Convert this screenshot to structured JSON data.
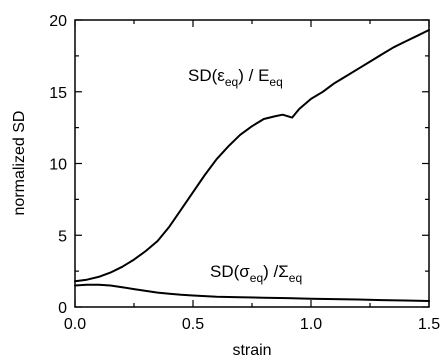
{
  "chart_data": {
    "type": "line",
    "title": "",
    "xlabel": "strain",
    "ylabel": "normalized SD",
    "xlim": [
      0,
      1.5
    ],
    "ylim": [
      0,
      20
    ],
    "xticks": [
      0.0,
      0.5,
      1.0,
      1.5
    ],
    "yticks": [
      0,
      5,
      10,
      15,
      20
    ],
    "xtick_labels": [
      "0.0",
      "0.5",
      "1.0",
      "1.5"
    ],
    "ytick_labels": [
      "0",
      "5",
      "10",
      "15",
      "20"
    ],
    "grid": false,
    "line_color": "#000000",
    "series": [
      {
        "points": [
          [
            0.0,
            1.8
          ],
          [
            0.05,
            1.9
          ],
          [
            0.1,
            2.1
          ],
          [
            0.15,
            2.4
          ],
          [
            0.2,
            2.8
          ],
          [
            0.25,
            3.3
          ],
          [
            0.3,
            3.9
          ],
          [
            0.35,
            4.6
          ],
          [
            0.4,
            5.6
          ],
          [
            0.45,
            6.8
          ],
          [
            0.5,
            8.0
          ],
          [
            0.55,
            9.2
          ],
          [
            0.6,
            10.3
          ],
          [
            0.65,
            11.2
          ],
          [
            0.7,
            12.0
          ],
          [
            0.75,
            12.6
          ],
          [
            0.8,
            13.1
          ],
          [
            0.85,
            13.3
          ],
          [
            0.88,
            13.4
          ],
          [
            0.92,
            13.2
          ],
          [
            0.95,
            13.8
          ],
          [
            1.0,
            14.5
          ],
          [
            1.05,
            15.0
          ],
          [
            1.1,
            15.6
          ],
          [
            1.15,
            16.1
          ],
          [
            1.2,
            16.6
          ],
          [
            1.25,
            17.1
          ],
          [
            1.3,
            17.6
          ],
          [
            1.35,
            18.1
          ],
          [
            1.4,
            18.5
          ],
          [
            1.45,
            18.9
          ],
          [
            1.5,
            19.3
          ]
        ],
        "label_parts": [
          "SD(",
          "ε",
          "eq",
          ") / E",
          "eq"
        ]
      },
      {
        "points": [
          [
            0.0,
            1.5
          ],
          [
            0.05,
            1.55
          ],
          [
            0.1,
            1.55
          ],
          [
            0.15,
            1.5
          ],
          [
            0.2,
            1.38
          ],
          [
            0.25,
            1.25
          ],
          [
            0.3,
            1.12
          ],
          [
            0.35,
            1.0
          ],
          [
            0.4,
            0.92
          ],
          [
            0.45,
            0.85
          ],
          [
            0.5,
            0.8
          ],
          [
            0.6,
            0.72
          ],
          [
            0.7,
            0.68
          ],
          [
            0.8,
            0.65
          ],
          [
            0.9,
            0.62
          ],
          [
            1.0,
            0.58
          ],
          [
            1.1,
            0.55
          ],
          [
            1.2,
            0.52
          ],
          [
            1.3,
            0.48
          ],
          [
            1.4,
            0.45
          ],
          [
            1.5,
            0.42
          ]
        ],
        "label_parts": [
          "SD(",
          "σ",
          "eq",
          ") /Σ",
          "eq"
        ]
      }
    ]
  }
}
